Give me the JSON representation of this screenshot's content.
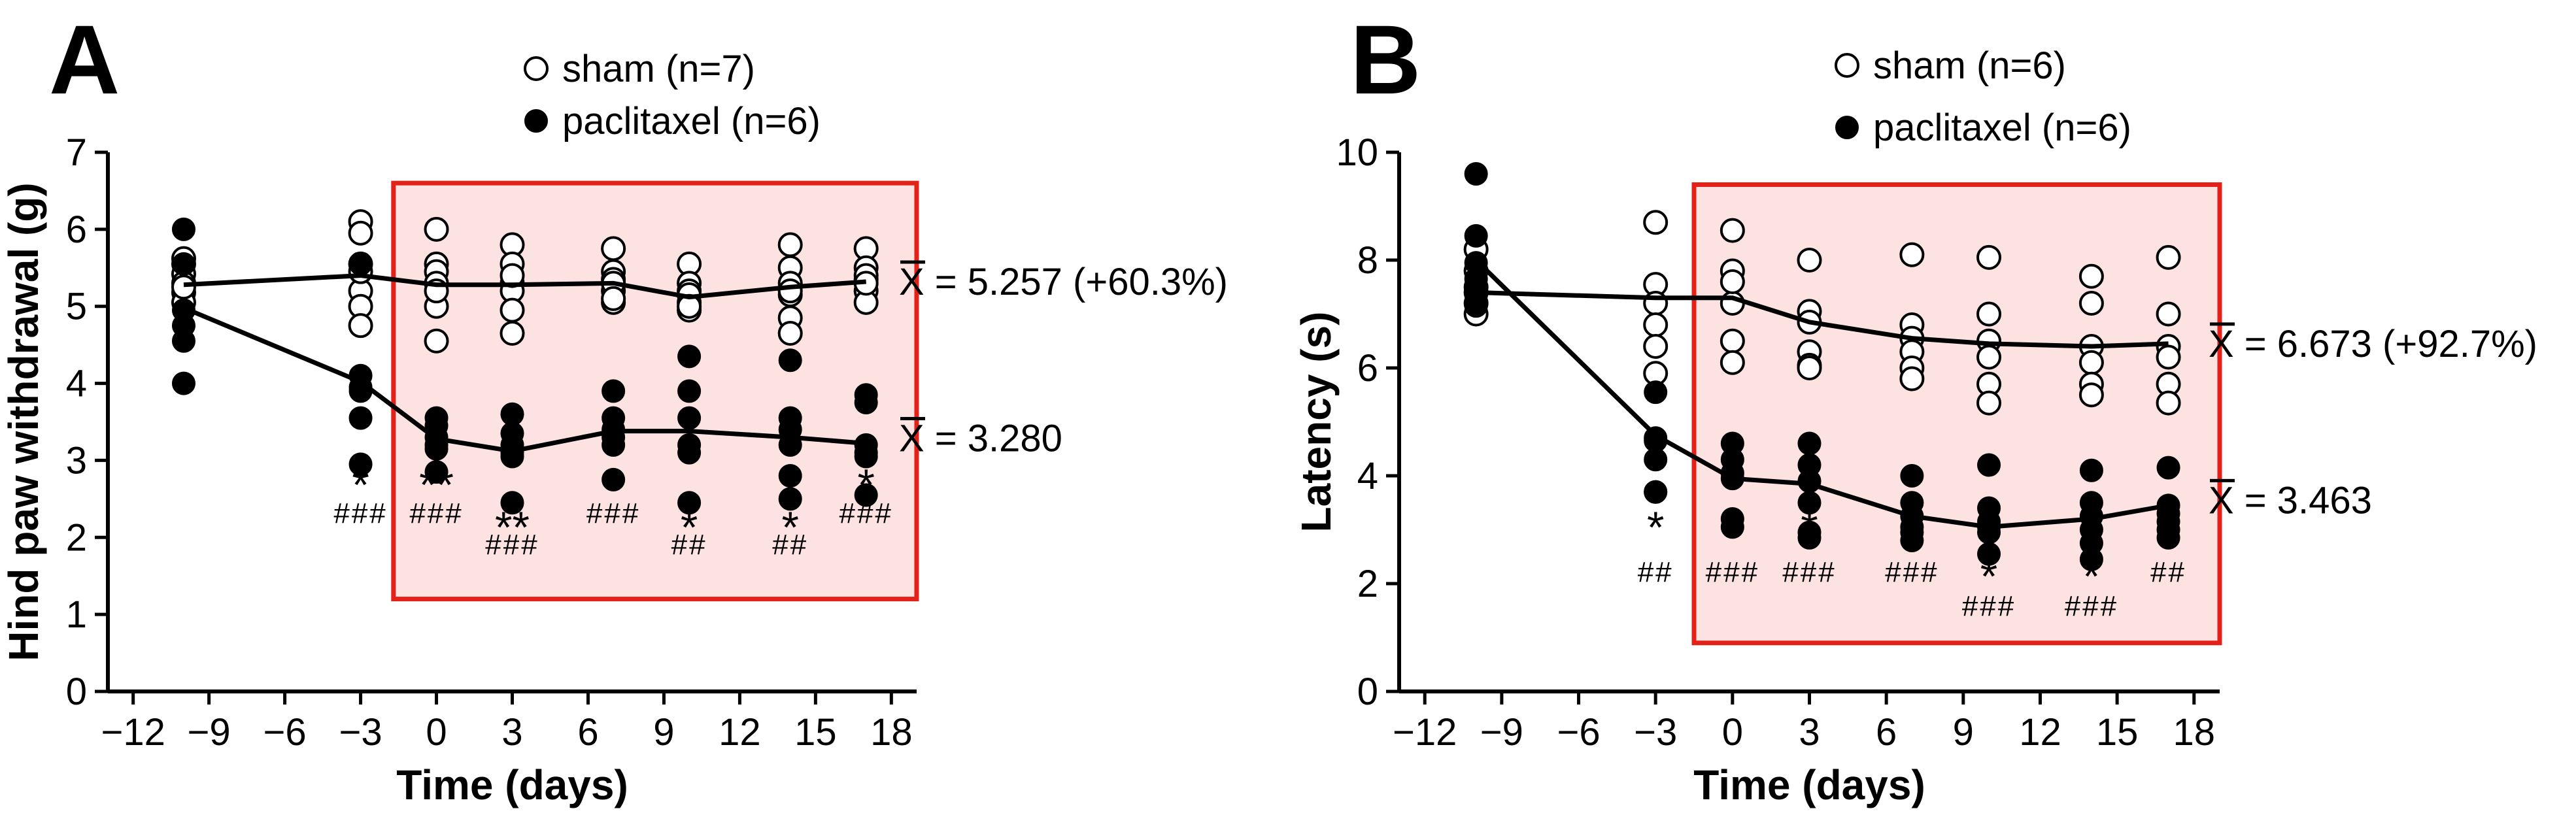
{
  "chart_data": [
    {
      "panel": "A",
      "type": "scatter",
      "xlabel": "Time (days)",
      "ylabel": "Hind paw withdrawal (g)",
      "xlim": [
        -13,
        19
      ],
      "ylim": [
        0,
        7
      ],
      "xticks": [
        -12,
        -9,
        -6,
        -3,
        0,
        3,
        6,
        9,
        12,
        15,
        18
      ],
      "xtick_labels": [
        "−12",
        "−9",
        "−6",
        "−3",
        "0",
        "3",
        "6",
        "9",
        "12",
        "15",
        "18"
      ],
      "yticks": [
        0,
        1,
        2,
        3,
        4,
        5,
        6,
        7
      ],
      "ytick_labels": [
        "0",
        "1",
        "2",
        "3",
        "4",
        "5",
        "6",
        "7"
      ],
      "highlight_range": {
        "x": [
          -1.7,
          19.0
        ],
        "y": [
          1.2,
          6.6
        ]
      },
      "series": [
        {
          "name": "sham (n=7)",
          "marker": "open",
          "x": [
            -10,
            -3,
            0,
            3,
            7,
            10,
            14,
            17
          ],
          "means": [
            5.28,
            5.4,
            5.28,
            5.28,
            5.3,
            5.12,
            5.25,
            5.32
          ],
          "points": [
            [
              5.55,
              5.42,
              5.3,
              5.18,
              5.05,
              5.62,
              5.25
            ],
            [
              6.1,
              5.95,
              5.55,
              5.2,
              5.0,
              4.75,
              5.45
            ],
            [
              6.0,
              5.55,
              5.45,
              5.0,
              4.55,
              5.3,
              5.2
            ],
            [
              5.8,
              5.55,
              5.3,
              5.2,
              4.95,
              4.65,
              5.4
            ],
            [
              5.75,
              5.45,
              5.35,
              5.2,
              5.05,
              5.3,
              5.1
            ],
            [
              5.55,
              5.3,
              5.2,
              5.05,
              4.95,
              5.15,
              5.0
            ],
            [
              5.8,
              5.5,
              5.3,
              5.15,
              4.85,
              4.65,
              5.2
            ],
            [
              5.75,
              5.5,
              5.35,
              5.2,
              5.05,
              5.4,
              5.3
            ]
          ],
          "mean_label": "X = 5.257 (+60.3%)"
        },
        {
          "name": "paclitaxel (n=6)",
          "marker": "filled",
          "x": [
            -10,
            -3,
            0,
            3,
            7,
            10,
            14,
            17
          ],
          "means": [
            4.98,
            4.02,
            3.28,
            3.12,
            3.38,
            3.38,
            3.3,
            3.22
          ],
          "points": [
            [
              6.0,
              5.55,
              4.95,
              4.75,
              4.55,
              4.0
            ],
            [
              5.55,
              4.1,
              3.95,
              3.9,
              3.55,
              2.95
            ],
            [
              3.55,
              3.45,
              3.3,
              3.2,
              3.15,
              2.85
            ],
            [
              3.6,
              3.35,
              3.2,
              3.1,
              3.05,
              2.45
            ],
            [
              3.9,
              3.55,
              3.4,
              3.3,
              3.2,
              2.75
            ],
            [
              4.35,
              3.9,
              3.55,
              3.2,
              3.1,
              2.45
            ],
            [
              4.3,
              3.55,
              3.4,
              3.2,
              2.8,
              2.5
            ],
            [
              3.85,
              3.75,
              3.2,
              3.1,
              3.05,
              2.55
            ]
          ],
          "mean_label": "X = 3.280"
        }
      ],
      "annotations": [
        {
          "x": -3,
          "stars": "*",
          "hashes": "###",
          "row": 0
        },
        {
          "x": 0,
          "stars": "**",
          "hashes": "###",
          "row": 0
        },
        {
          "x": 3,
          "stars": "**",
          "hashes": "###",
          "row": 1
        },
        {
          "x": 7,
          "stars": "*",
          "hashes": "###",
          "row": 0
        },
        {
          "x": 10,
          "stars": "*",
          "hashes": "##",
          "row": 1
        },
        {
          "x": 14,
          "stars": "*",
          "hashes": "##",
          "row": 1
        },
        {
          "x": 17,
          "stars": "*",
          "hashes": "###",
          "row": 0
        }
      ]
    },
    {
      "panel": "B",
      "type": "scatter",
      "xlabel": "Time (days)",
      "ylabel": "Latency (s)",
      "xlim": [
        -13,
        19
      ],
      "ylim": [
        0,
        10
      ],
      "xticks": [
        -12,
        -9,
        -6,
        -3,
        0,
        3,
        6,
        9,
        12,
        15,
        18
      ],
      "xtick_labels": [
        "−12",
        "−9",
        "−6",
        "−3",
        "0",
        "3",
        "6",
        "9",
        "12",
        "15",
        "18"
      ],
      "yticks": [
        0,
        2,
        4,
        6,
        8,
        10
      ],
      "ytick_labels": [
        "0",
        "2",
        "4",
        "6",
        "8",
        "10"
      ],
      "highlight_range": {
        "x": [
          -1.5,
          19.0
        ],
        "y": [
          0.9,
          9.4
        ]
      },
      "series": [
        {
          "name": "sham (n=6)",
          "marker": "open",
          "x": [
            -10,
            -3,
            0,
            3,
            7,
            10,
            14,
            17
          ],
          "means": [
            7.4,
            7.3,
            7.3,
            6.85,
            6.55,
            6.45,
            6.4,
            6.45
          ],
          "points": [
            [
              8.2,
              7.8,
              7.5,
              7.4,
              7.2,
              7.0
            ],
            [
              8.7,
              7.55,
              7.2,
              6.8,
              6.4,
              5.9
            ],
            [
              8.55,
              7.8,
              7.2,
              6.5,
              6.1,
              7.6
            ],
            [
              8.0,
              7.05,
              6.85,
              6.3,
              6.05,
              6.0
            ],
            [
              8.1,
              6.8,
              6.55,
              6.3,
              6.0,
              5.8
            ],
            [
              8.05,
              7.0,
              6.5,
              6.2,
              5.7,
              5.35
            ],
            [
              7.7,
              7.2,
              6.4,
              6.1,
              5.7,
              5.5
            ],
            [
              8.05,
              7.0,
              6.4,
              6.2,
              5.7,
              5.35
            ]
          ],
          "mean_label": "X = 6.673 (+92.7%)"
        },
        {
          "name": "paclitaxel (n=6)",
          "marker": "filled",
          "x": [
            -10,
            -3,
            0,
            3,
            7,
            10,
            14,
            17
          ],
          "means": [
            8.0,
            4.75,
            3.95,
            3.85,
            3.25,
            3.05,
            3.2,
            3.45
          ],
          "points": [
            [
              9.6,
              8.45,
              7.95,
              7.65,
              7.35,
              7.15
            ],
            [
              5.55,
              4.65,
              4.3,
              3.7,
              4.7,
              3.7
            ],
            [
              4.6,
              4.3,
              4.05,
              3.95,
              3.2,
              3.05
            ],
            [
              4.6,
              4.2,
              3.9,
              3.5,
              2.95,
              2.85
            ],
            [
              4.0,
              3.5,
              3.25,
              3.05,
              2.95,
              2.8
            ],
            [
              4.2,
              3.4,
              3.15,
              3.05,
              2.95,
              2.55
            ],
            [
              4.1,
              3.5,
              3.25,
              3.0,
              2.75,
              2.45
            ],
            [
              4.15,
              3.45,
              3.3,
              3.15,
              3.0,
              2.85
            ]
          ],
          "mean_label": "X = 3.463"
        }
      ],
      "annotations": [
        {
          "x": -3,
          "stars": "*",
          "hashes": "##",
          "row": 0
        },
        {
          "x": 0,
          "stars": "*",
          "hashes": "###",
          "row": 0
        },
        {
          "x": 3,
          "stars": "*",
          "hashes": "###",
          "row": 0
        },
        {
          "x": 7,
          "stars": "*",
          "hashes": "###",
          "row": 0
        },
        {
          "x": 10,
          "stars": "*",
          "hashes": "###",
          "row": 1
        },
        {
          "x": 14,
          "stars": "*",
          "hashes": "###",
          "row": 1
        },
        {
          "x": 17,
          "stars": "*",
          "hashes": "##",
          "row": 0
        }
      ]
    }
  ]
}
